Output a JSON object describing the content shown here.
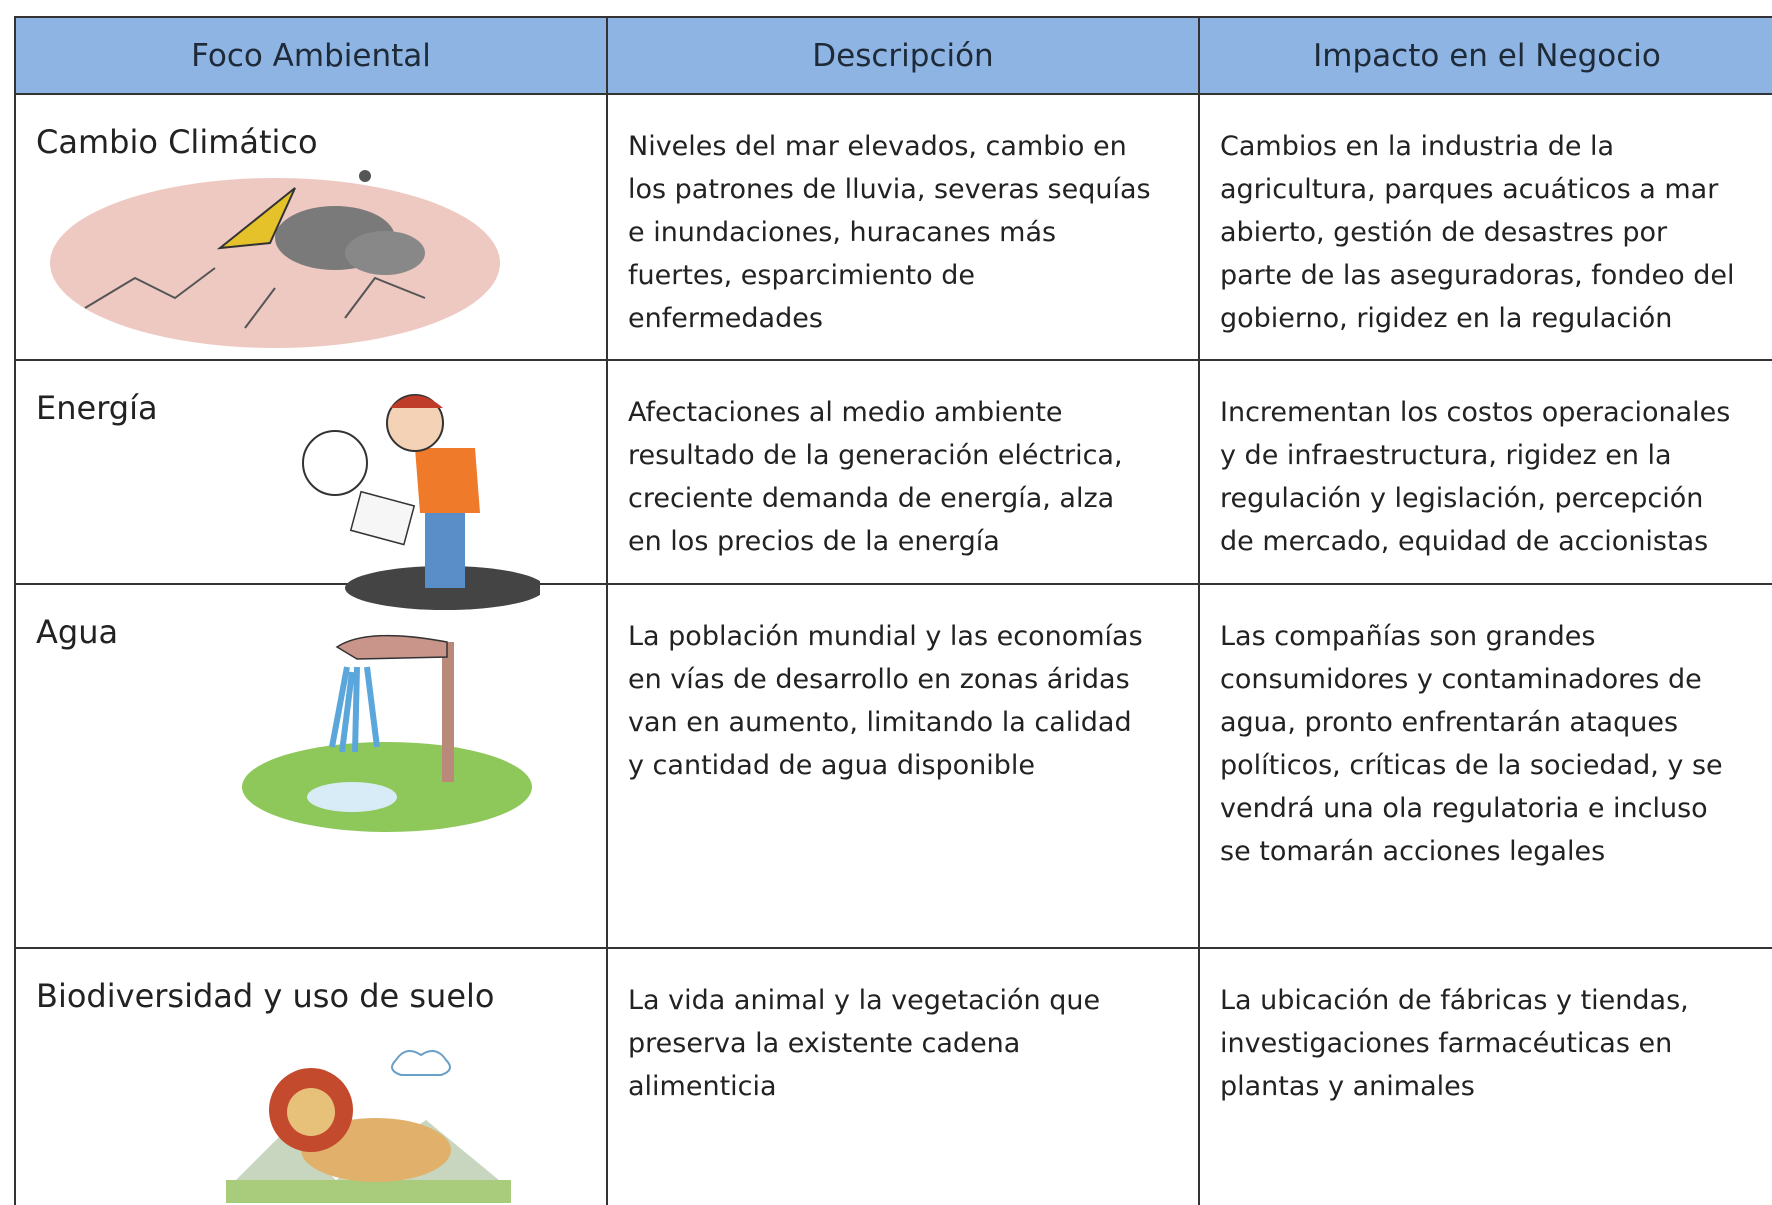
{
  "table": {
    "header": [
      "Foco Ambiental",
      "Descripción",
      "Impacto en el Negocio"
    ],
    "rows": [
      [
        "Cambio Climático",
        [
          "Niveles del mar elevados, cambio en",
          "los patrones de lluvia, severas sequías",
          "e inundaciones, huracanes más",
          "fuertes, esparcimiento de",
          "enfermedades"
        ],
        [
          "Cambios en la industria de la",
          "agricultura, parques acuáticos a mar",
          "abierto, gestión de desastres por",
          "parte de las aseguradoras, fondeo del",
          "gobierno, rigidez en la regulación"
        ]
      ],
      [
        "Energía",
        [
          "Afectaciones al medio ambiente",
          "resultado de la generación eléctrica,",
          "creciente demanda de energía, alza",
          "en los precios de la energía"
        ],
        [
          "Incrementan los costos operacionales",
          "y de infraestructura, rigidez en la",
          "regulación y legislación, percepción",
          "de mercado, equidad de accionistas"
        ]
      ],
      [
        "Agua",
        [
          "La población mundial y las economías",
          "en vías de desarrollo en zonas áridas",
          "van en aumento, limitando la calidad",
          "y cantidad de agua disponible"
        ],
        [
          "Las compañías son grandes",
          "consumidores y contaminadores de",
          "agua, pronto enfrentarán ataques",
          "políticos, críticas de la sociedad, y se",
          "vendrá una ola regulatoria e incluso",
          "se tomarán acciones legales"
        ]
      ],
      [
        "Biodiversidad y uso de suelo",
        [
          "La vida animal y la vegetación que",
          "preserva la existente cadena",
          "alimenticia"
        ],
        [
          "La ubicación de fábricas y tiendas,",
          "investigaciones farmacéuticas en",
          "plantas y animales"
        ]
      ]
    ]
  }
}
